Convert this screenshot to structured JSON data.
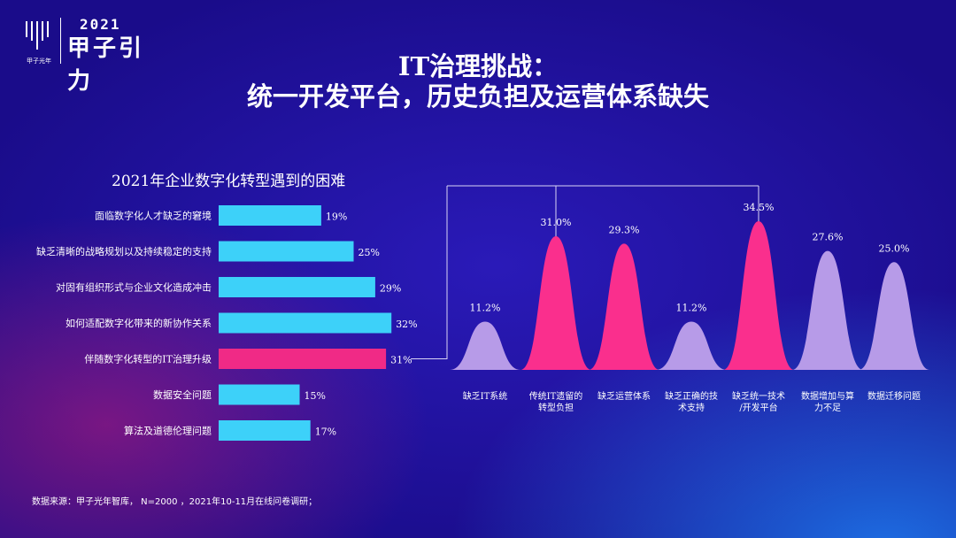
{
  "logo": {
    "year": "2021",
    "brand": "甲子引力",
    "small_text": "甲子光年"
  },
  "title": {
    "line1": "IT治理挑战：",
    "line2": "统一开发平台，历史负担及运营体系缺失"
  },
  "footnote": "数据来源：甲子光年智库，   N=2000 ，2021年10-11月在线问卷调研；",
  "colors": {
    "bar": "#3dd1f9",
    "bar_highlight": "#f02a86",
    "peak_pink": "#fa2f8d",
    "peak_purple": "#b79be8"
  },
  "chart_data": [
    {
      "type": "bar",
      "orientation": "horizontal",
      "title": "2021年企业数字化转型遇到的困难",
      "categories": [
        "面临数字化人才缺乏的窘境",
        "缺乏清晰的战略规划以及持续稳定的支持",
        "对固有组织形式与企业文化造成冲击",
        "如何适配数字化带来的新协作关系",
        "伴随数字化转型的IT治理升级",
        "数据安全问题",
        "算法及道德伦理问题"
      ],
      "values": [
        19,
        25,
        29,
        32,
        31,
        15,
        17
      ],
      "value_labels": [
        "19%",
        "25%",
        "29%",
        "32%",
        "31%",
        "15%",
        "17%"
      ],
      "highlight": [
        false,
        false,
        false,
        false,
        true,
        false,
        false
      ],
      "xlim": [
        0,
        60
      ]
    },
    {
      "type": "bar",
      "style": "peak",
      "categories": [
        [
          "缺乏IT系统"
        ],
        [
          "传统IT遗留的",
          "转型负担"
        ],
        [
          "缺乏运营体系"
        ],
        [
          "缺乏正确的技",
          "术支持"
        ],
        [
          "缺乏统一技术",
          "/开发平台"
        ],
        [
          "数据增加与算",
          "力不足"
        ],
        [
          "数据迁移问题"
        ]
      ],
      "values": [
        11.2,
        31.0,
        29.3,
        11.2,
        34.5,
        27.6,
        25.0
      ],
      "value_labels": [
        "11.2%",
        "31.0%",
        "29.3%",
        "11.2%",
        "34.5%",
        "27.6%",
        "25.0%"
      ],
      "highlight": [
        false,
        true,
        true,
        false,
        true,
        false,
        false
      ],
      "connected": [
        false,
        true,
        false,
        false,
        true,
        false,
        false
      ],
      "ylim": [
        0,
        34.5
      ]
    }
  ]
}
